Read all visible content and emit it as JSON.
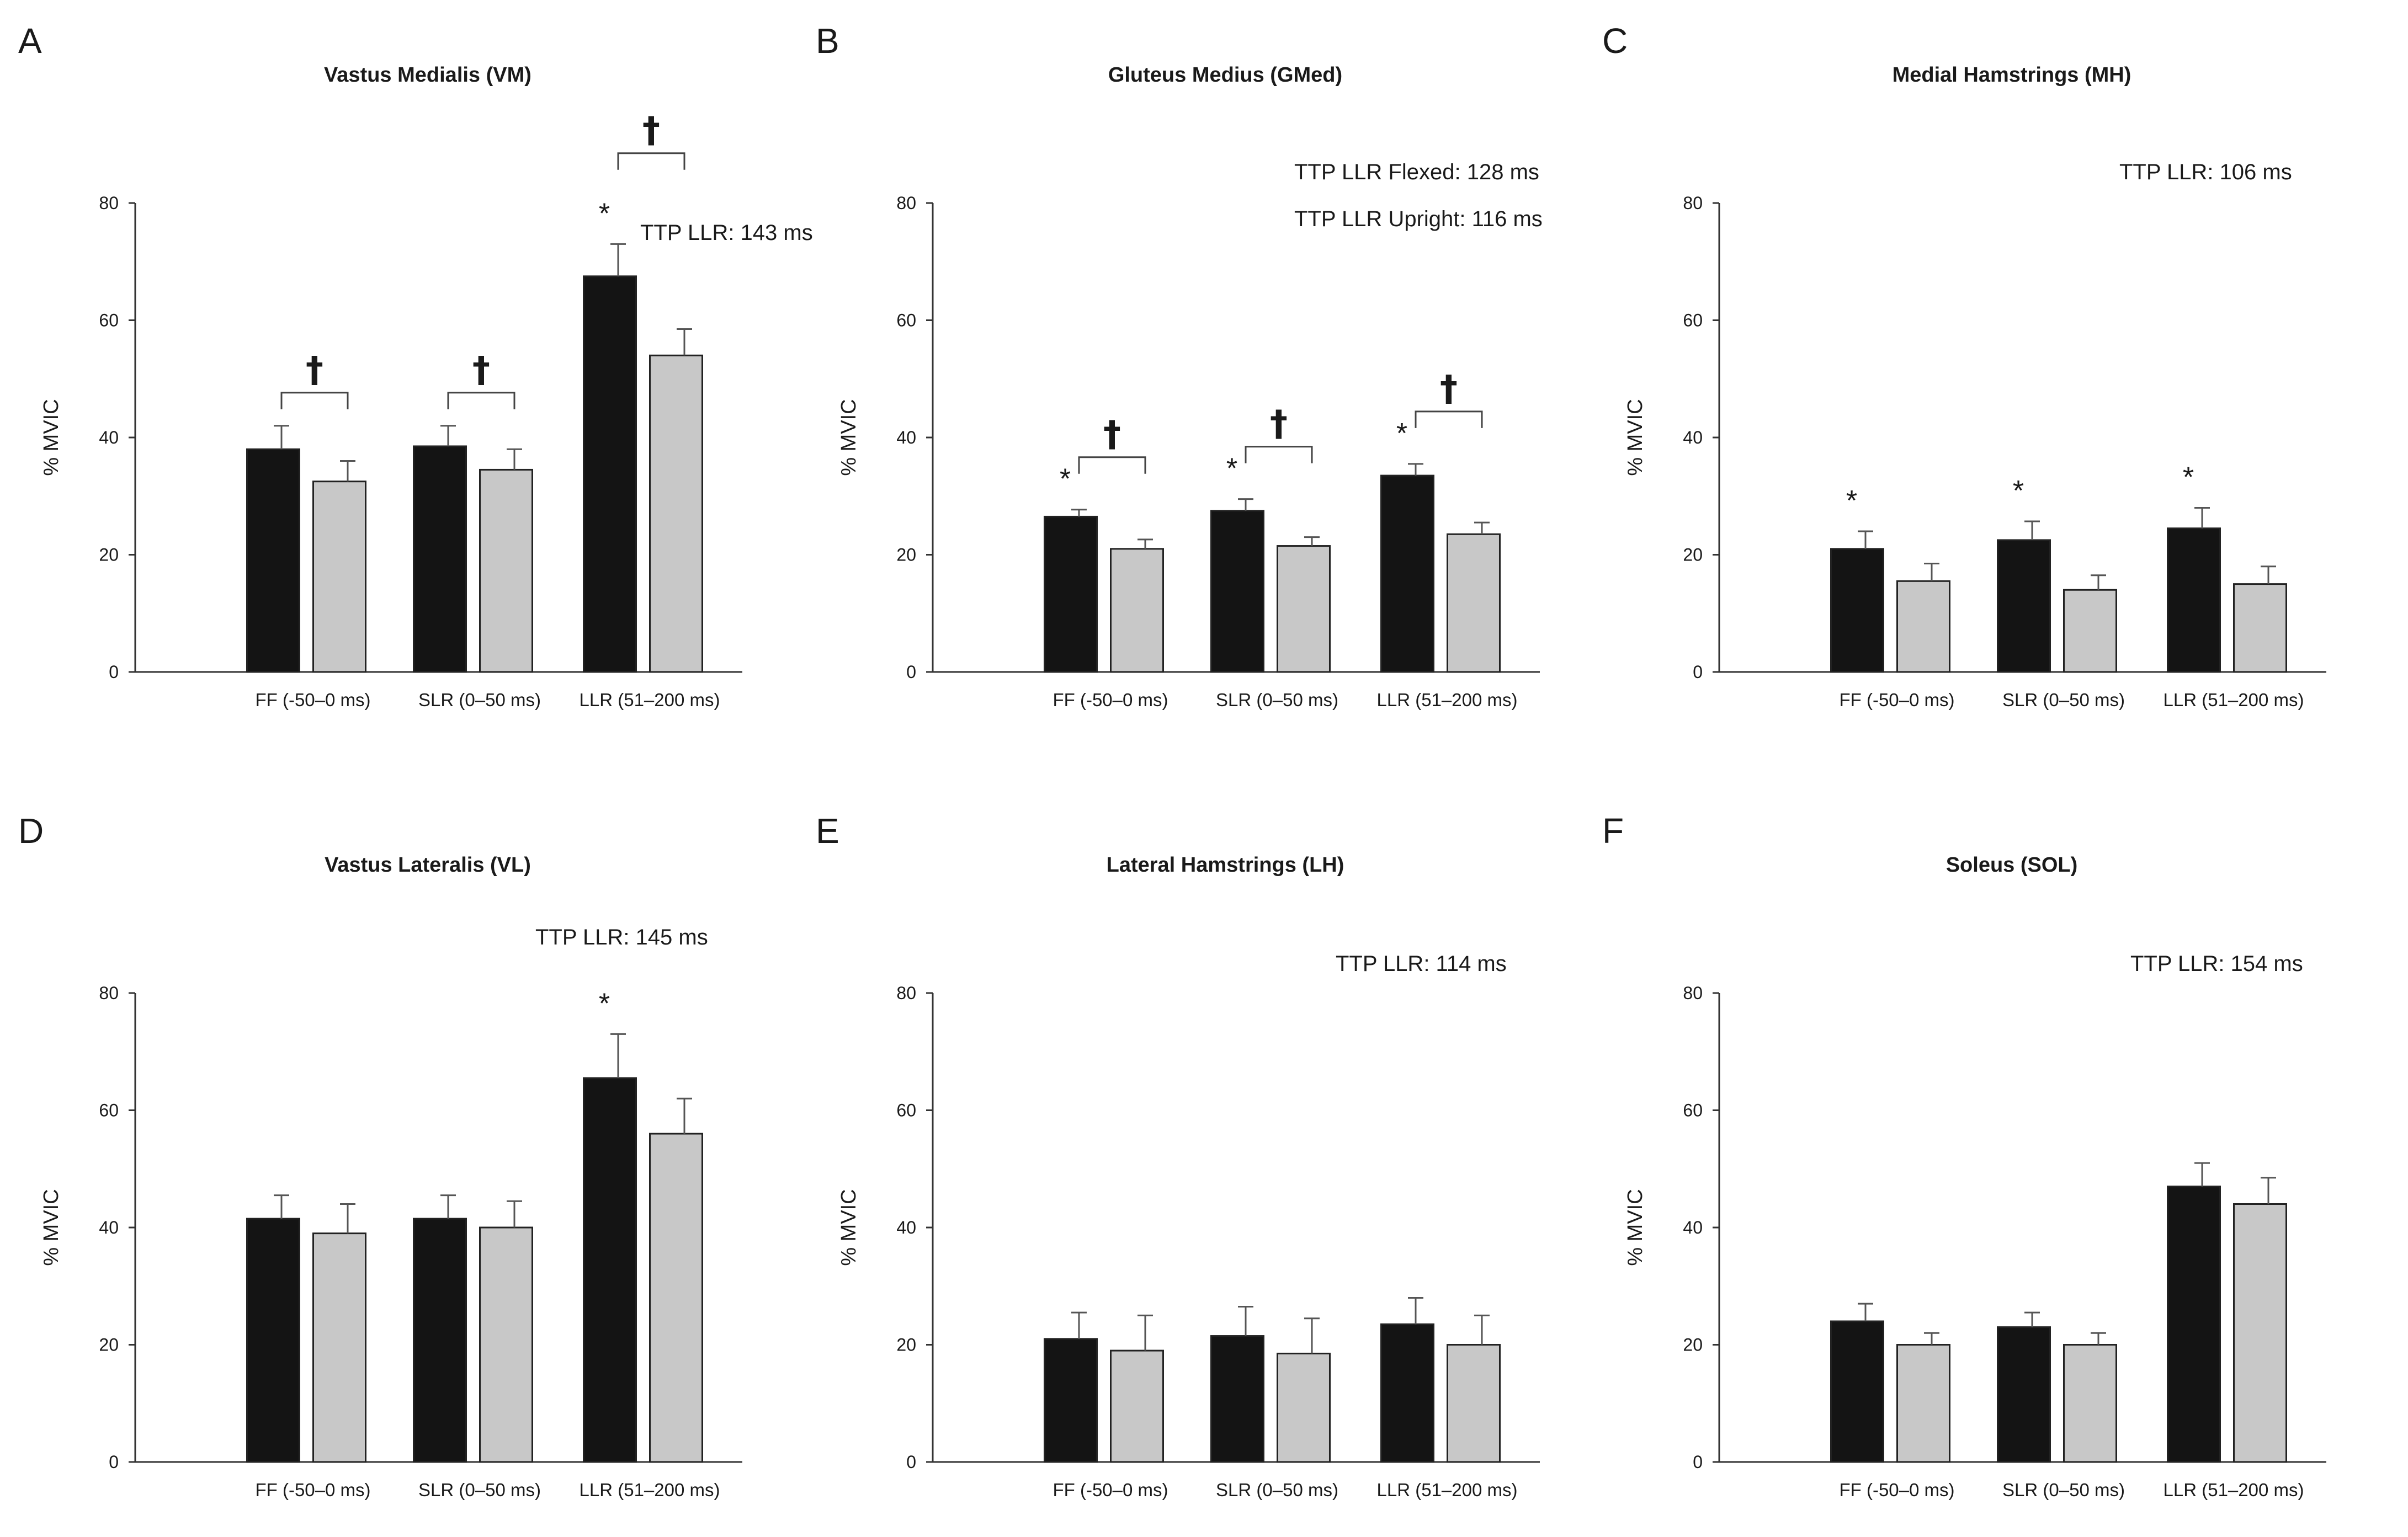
{
  "figure": {
    "colors": {
      "flexed": "#141414",
      "upright": "#c8c8c8",
      "axis": "#333333"
    },
    "y_tick_labels": [
      "0",
      "20",
      "40",
      "60",
      "80"
    ]
  },
  "chart_data": [
    {
      "type": "bar",
      "panel": "A",
      "title": "Vastus Medialis (VM)",
      "ylabel": "% MVIC",
      "xlabel": "",
      "ylim": [
        0,
        80
      ],
      "categories": [
        "FF (-50–0 ms)",
        "SLR (0–50 ms)",
        "LLR (51–200 ms)"
      ],
      "series": [
        {
          "name": "Flexed",
          "values": [
            38,
            38.5,
            67.5
          ],
          "errors": [
            4,
            3.5,
            5.5
          ]
        },
        {
          "name": "Upright",
          "values": [
            32.5,
            34.5,
            54
          ],
          "errors": [
            3.5,
            3.5,
            4.5
          ]
        }
      ],
      "annotations": [
        "TTP LLR: 143 ms"
      ],
      "stars": [
        false,
        false,
        true
      ],
      "daggers": [
        true,
        true,
        true
      ]
    },
    {
      "type": "bar",
      "panel": "B",
      "title": "Gluteus Medius (GMed)",
      "ylabel": "% MVIC",
      "xlabel": "",
      "ylim": [
        0,
        80
      ],
      "categories": [
        "FF (-50–0 ms)",
        "SLR (0–50 ms)",
        "LLR (51–200 ms)"
      ],
      "series": [
        {
          "name": "Flexed",
          "values": [
            26.5,
            27.5,
            33.5
          ],
          "errors": [
            1.2,
            2,
            2
          ]
        },
        {
          "name": "Upright",
          "values": [
            21,
            21.5,
            23.5
          ],
          "errors": [
            1.6,
            1.5,
            2
          ]
        }
      ],
      "annotations": [
        "TTP LLR Flexed: 128 ms",
        "TTP LLR Upright: 116 ms"
      ],
      "stars": [
        true,
        true,
        true
      ],
      "daggers": [
        true,
        true,
        true
      ]
    },
    {
      "type": "bar",
      "panel": "C",
      "title": "Medial Hamstrings (MH)",
      "ylabel": "% MVIC",
      "xlabel": "",
      "ylim": [
        0,
        80
      ],
      "categories": [
        "FF (-50–0 ms)",
        "SLR (0–50 ms)",
        "LLR (51–200 ms)"
      ],
      "series": [
        {
          "name": "Flexed",
          "values": [
            21,
            22.5,
            24.5
          ],
          "errors": [
            3,
            3.2,
            3.5
          ]
        },
        {
          "name": "Upright",
          "values": [
            15.5,
            14,
            15
          ],
          "errors": [
            3,
            2.5,
            3
          ]
        }
      ],
      "annotations": [
        "TTP LLR: 106 ms"
      ],
      "stars": [
        true,
        true,
        true
      ],
      "daggers": [
        false,
        false,
        false
      ]
    },
    {
      "type": "bar",
      "panel": "D",
      "title": "Vastus Lateralis (VL)",
      "ylabel": "% MVIC",
      "xlabel": "",
      "ylim": [
        0,
        80
      ],
      "categories": [
        "FF (-50–0 ms)",
        "SLR (0–50 ms)",
        "LLR (51–200 ms)"
      ],
      "series": [
        {
          "name": "Flexed",
          "values": [
            41.5,
            41.5,
            65.5
          ],
          "errors": [
            4,
            4,
            7.5
          ]
        },
        {
          "name": "Upright",
          "values": [
            39,
            40,
            56
          ],
          "errors": [
            5,
            4.5,
            6
          ]
        }
      ],
      "annotations": [
        "TTP LLR: 145 ms"
      ],
      "stars": [
        false,
        false,
        true
      ],
      "daggers": [
        false,
        false,
        false
      ]
    },
    {
      "type": "bar",
      "panel": "E",
      "title": "Lateral Hamstrings (LH)",
      "ylabel": "% MVIC",
      "xlabel": "",
      "ylim": [
        0,
        80
      ],
      "categories": [
        "FF (-50–0 ms)",
        "SLR (0–50 ms)",
        "LLR (51–200 ms)"
      ],
      "series": [
        {
          "name": "Flexed",
          "values": [
            21,
            21.5,
            23.5
          ],
          "errors": [
            4.5,
            5,
            4.5
          ]
        },
        {
          "name": "Upright",
          "values": [
            19,
            18.5,
            20
          ],
          "errors": [
            6,
            6,
            5
          ]
        }
      ],
      "annotations": [
        "TTP LLR: 114 ms"
      ],
      "stars": [
        false,
        false,
        false
      ],
      "daggers": [
        false,
        false,
        false
      ]
    },
    {
      "type": "bar",
      "panel": "F",
      "title": "Soleus (SOL)",
      "ylabel": "% MVIC",
      "xlabel": "",
      "ylim": [
        0,
        80
      ],
      "categories": [
        "FF (-50–0 ms)",
        "SLR (0–50 ms)",
        "LLR (51–200 ms)"
      ],
      "series": [
        {
          "name": "Flexed",
          "values": [
            24,
            23,
            47
          ],
          "errors": [
            3,
            2.5,
            4
          ]
        },
        {
          "name": "Upright",
          "values": [
            20,
            20,
            44
          ],
          "errors": [
            2,
            2,
            4.5
          ]
        }
      ],
      "annotations": [
        "TTP LLR: 154 ms"
      ],
      "stars": [
        false,
        false,
        false
      ],
      "daggers": [
        false,
        false,
        false
      ]
    }
  ]
}
